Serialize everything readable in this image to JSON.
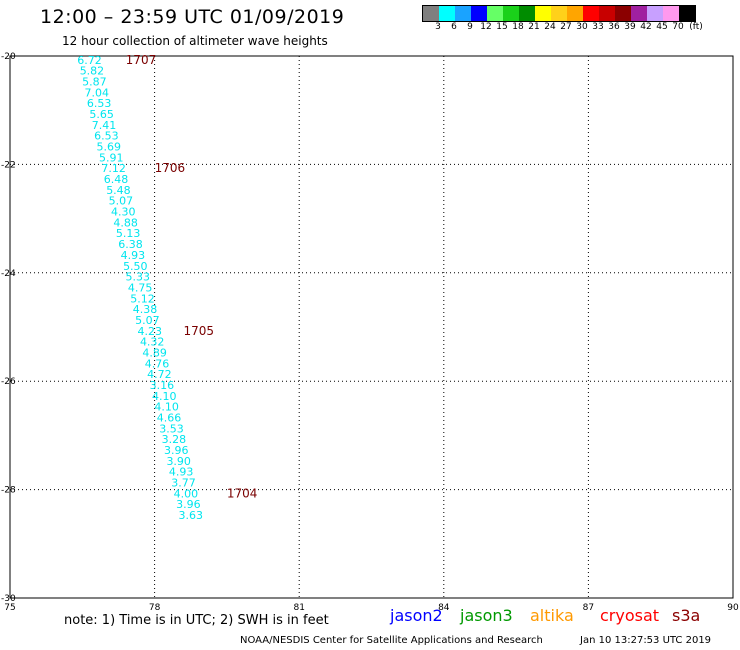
{
  "header": {
    "title": "12:00 – 23:59 UTC 01/09/2019",
    "subtitle": "12 hour collection of altimeter wave heights"
  },
  "colorbar": {
    "colors": [
      "#7f7f7f",
      "#00ffff",
      "#1aa3ff",
      "#0000ff",
      "#66ff66",
      "#1ad11a",
      "#008c00",
      "#ffff00",
      "#ffd11a",
      "#ffa500",
      "#ff0000",
      "#c80000",
      "#8b0000",
      "#a020a0",
      "#c8a0ff",
      "#ff99ee",
      "#000000"
    ],
    "labels": [
      "3",
      "6",
      "9",
      "12",
      "15",
      "18",
      "21",
      "24",
      "27",
      "30",
      "33",
      "36",
      "39",
      "42",
      "45",
      "70"
    ],
    "unit": "(ft)"
  },
  "chart_data": {
    "type": "scatter",
    "x_ticks": [
      "75",
      "78",
      "81",
      "84",
      "87",
      "90"
    ],
    "y_ticks": [
      "-20",
      "-22",
      "-24",
      "-26",
      "-28",
      "-30"
    ],
    "xlim": [
      75,
      90
    ],
    "ylim": [
      -30,
      -20
    ],
    "grid": true,
    "points": [
      {
        "lon": 76.65,
        "lat": -20.07,
        "label": "6.72"
      },
      {
        "lon": 76.7,
        "lat": -20.27,
        "label": "5.82"
      },
      {
        "lon": 76.75,
        "lat": -20.47,
        "label": "5.87"
      },
      {
        "lon": 76.8,
        "lat": -20.67,
        "label": "7.04"
      },
      {
        "lon": 76.85,
        "lat": -20.87,
        "label": "6.53"
      },
      {
        "lon": 76.9,
        "lat": -21.07,
        "label": "5.65"
      },
      {
        "lon": 76.95,
        "lat": -21.27,
        "label": "7.41"
      },
      {
        "lon": 77.0,
        "lat": -21.47,
        "label": "6.53"
      },
      {
        "lon": 77.05,
        "lat": -21.67,
        "label": "5.69"
      },
      {
        "lon": 77.1,
        "lat": -21.87,
        "label": "5.91"
      },
      {
        "lon": 77.15,
        "lat": -22.07,
        "label": "7.12"
      },
      {
        "lon": 77.2,
        "lat": -22.27,
        "label": "6.48"
      },
      {
        "lon": 77.25,
        "lat": -22.47,
        "label": "5.48"
      },
      {
        "lon": 77.3,
        "lat": -22.67,
        "label": "5.07"
      },
      {
        "lon": 77.35,
        "lat": -22.87,
        "label": "4.30"
      },
      {
        "lon": 77.4,
        "lat": -23.07,
        "label": "4.88"
      },
      {
        "lon": 77.45,
        "lat": -23.27,
        "label": "5.13"
      },
      {
        "lon": 77.5,
        "lat": -23.47,
        "label": "6.38"
      },
      {
        "lon": 77.55,
        "lat": -23.67,
        "label": "4.93"
      },
      {
        "lon": 77.6,
        "lat": -23.87,
        "label": "5.50"
      },
      {
        "lon": 77.65,
        "lat": -24.07,
        "label": "5.33"
      },
      {
        "lon": 77.7,
        "lat": -24.27,
        "label": "4.75"
      },
      {
        "lon": 77.75,
        "lat": -24.47,
        "label": "5.12"
      },
      {
        "lon": 77.8,
        "lat": -24.67,
        "label": "4.38"
      },
      {
        "lon": 77.85,
        "lat": -24.87,
        "label": "5.07"
      },
      {
        "lon": 77.9,
        "lat": -25.07,
        "label": "4.23"
      },
      {
        "lon": 77.95,
        "lat": -25.27,
        "label": "4.32"
      },
      {
        "lon": 78.0,
        "lat": -25.47,
        "label": "4.89"
      },
      {
        "lon": 78.05,
        "lat": -25.67,
        "label": "4.76"
      },
      {
        "lon": 78.1,
        "lat": -25.87,
        "label": "4.72"
      },
      {
        "lon": 78.15,
        "lat": -26.07,
        "label": "3.16"
      },
      {
        "lon": 78.2,
        "lat": -26.27,
        "label": "4.10"
      },
      {
        "lon": 78.25,
        "lat": -26.47,
        "label": "4.10"
      },
      {
        "lon": 78.3,
        "lat": -26.67,
        "label": "4.66"
      },
      {
        "lon": 78.35,
        "lat": -26.87,
        "label": "3.53"
      },
      {
        "lon": 78.4,
        "lat": -27.07,
        "label": "3.28"
      },
      {
        "lon": 78.45,
        "lat": -27.27,
        "label": "3.96"
      },
      {
        "lon": 78.5,
        "lat": -27.47,
        "label": "3.90"
      },
      {
        "lon": 78.55,
        "lat": -27.67,
        "label": "4.93"
      },
      {
        "lon": 78.6,
        "lat": -27.87,
        "label": "3.77"
      },
      {
        "lon": 78.65,
        "lat": -28.07,
        "label": "4.00"
      },
      {
        "lon": 78.7,
        "lat": -28.27,
        "label": "3.96"
      },
      {
        "lon": 78.75,
        "lat": -28.47,
        "label": "3.63"
      }
    ],
    "passes": [
      {
        "lon": 77.4,
        "lat": -20.07,
        "label": "1707"
      },
      {
        "lon": 78.0,
        "lat": -22.07,
        "label": "1706"
      },
      {
        "lon": 78.6,
        "lat": -25.07,
        "label": "1705"
      },
      {
        "lon": 79.5,
        "lat": -28.07,
        "label": "1704"
      }
    ],
    "point_color": "#00e5ee",
    "pass_color": "#7a0000"
  },
  "footer": {
    "note": "note:  1) Time is in UTC;  2) SWH is in feet",
    "satellites": [
      {
        "name": "jason2",
        "color": "#0000ff"
      },
      {
        "name": "jason3",
        "color": "#009900"
      },
      {
        "name": "altika",
        "color": "#ff9900"
      },
      {
        "name": "cryosat",
        "color": "#ff0000"
      },
      {
        "name": "s3a",
        "color": "#8b0000"
      }
    ],
    "credit": "NOAA/NESDIS Center for Satellite Applications and Research",
    "timestamp": "Jan 10 13:27:53 UTC 2019"
  }
}
